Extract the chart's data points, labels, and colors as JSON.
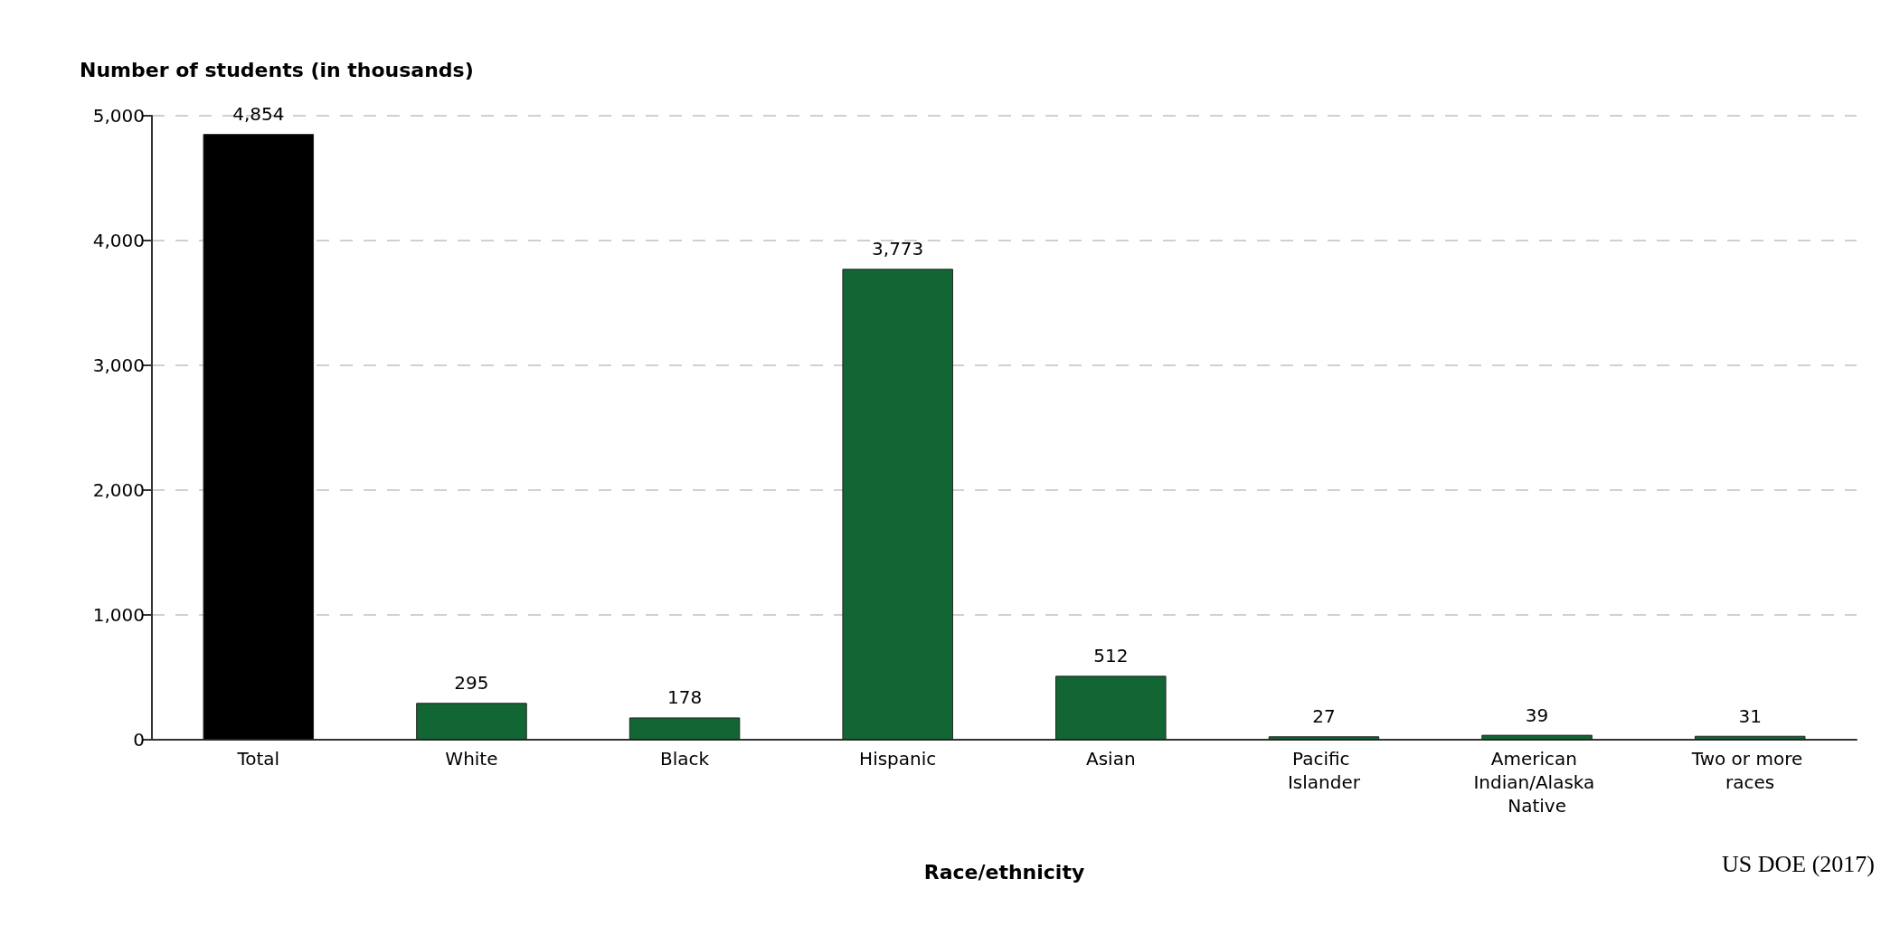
{
  "chart_data": {
    "type": "bar",
    "ylabel": "Number of students (in thousands)",
    "xlabel": "Race/ethnicity",
    "categories": [
      "Total",
      "White",
      "Black",
      "Hispanic",
      "Asian",
      "Pacific Islander",
      "American Indian/Alaska Native",
      "Two or more races"
    ],
    "values": [
      4854,
      295,
      178,
      3773,
      512,
      27,
      39,
      31
    ],
    "value_labels": [
      "4,854",
      "295",
      "178",
      "3,773",
      "512",
      "27",
      "39",
      "31"
    ],
    "colors": [
      "#000000",
      "#126634",
      "#126634",
      "#126634",
      "#126634",
      "#126634",
      "#126634",
      "#126634"
    ],
    "ylim": [
      0,
      5000
    ],
    "yticks": [
      0,
      {
        "value": 1000,
        "label": "1,000"
      },
      {
        "value": 2000,
        "label": "2,000"
      },
      {
        "value": 3000,
        "label": "3,000"
      },
      {
        "value": 4000,
        "label": "4,000"
      },
      {
        "value": 5000,
        "label": "5,000"
      }
    ],
    "grid": "y",
    "annotations": [
      "US DOE (2017)"
    ]
  }
}
